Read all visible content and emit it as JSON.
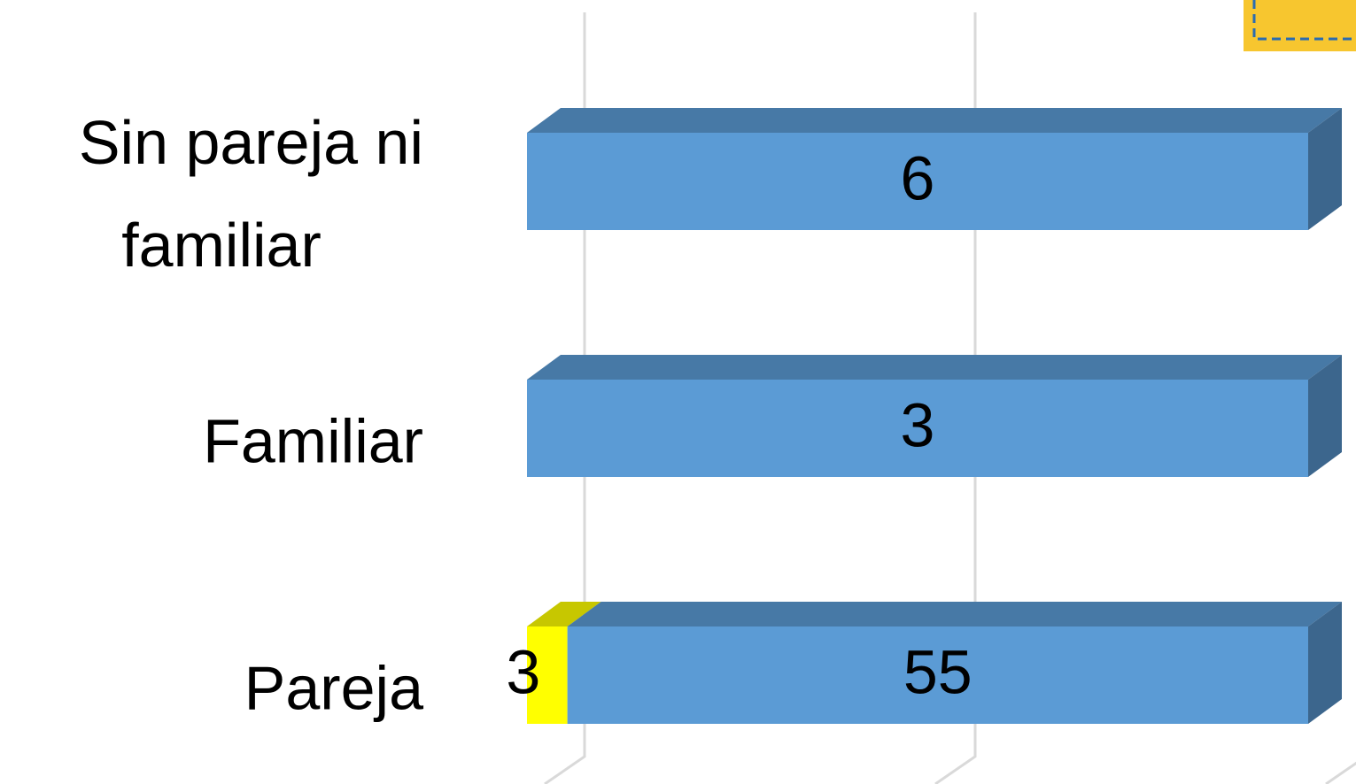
{
  "chart_data": {
    "type": "bar",
    "orientation": "horizontal",
    "stacked": "percent",
    "categories": [
      "Sin pareja ni familiar",
      "Familiar",
      "Pareja"
    ],
    "series": [
      {
        "color": "#ffff00",
        "values": [
          null,
          null,
          3
        ]
      },
      {
        "color": "#5b9bd5",
        "values": [
          6,
          3,
          55
        ]
      }
    ],
    "xlim": [
      0,
      100
    ],
    "xticks": [
      0,
      50,
      100
    ],
    "grid": true
  }
}
